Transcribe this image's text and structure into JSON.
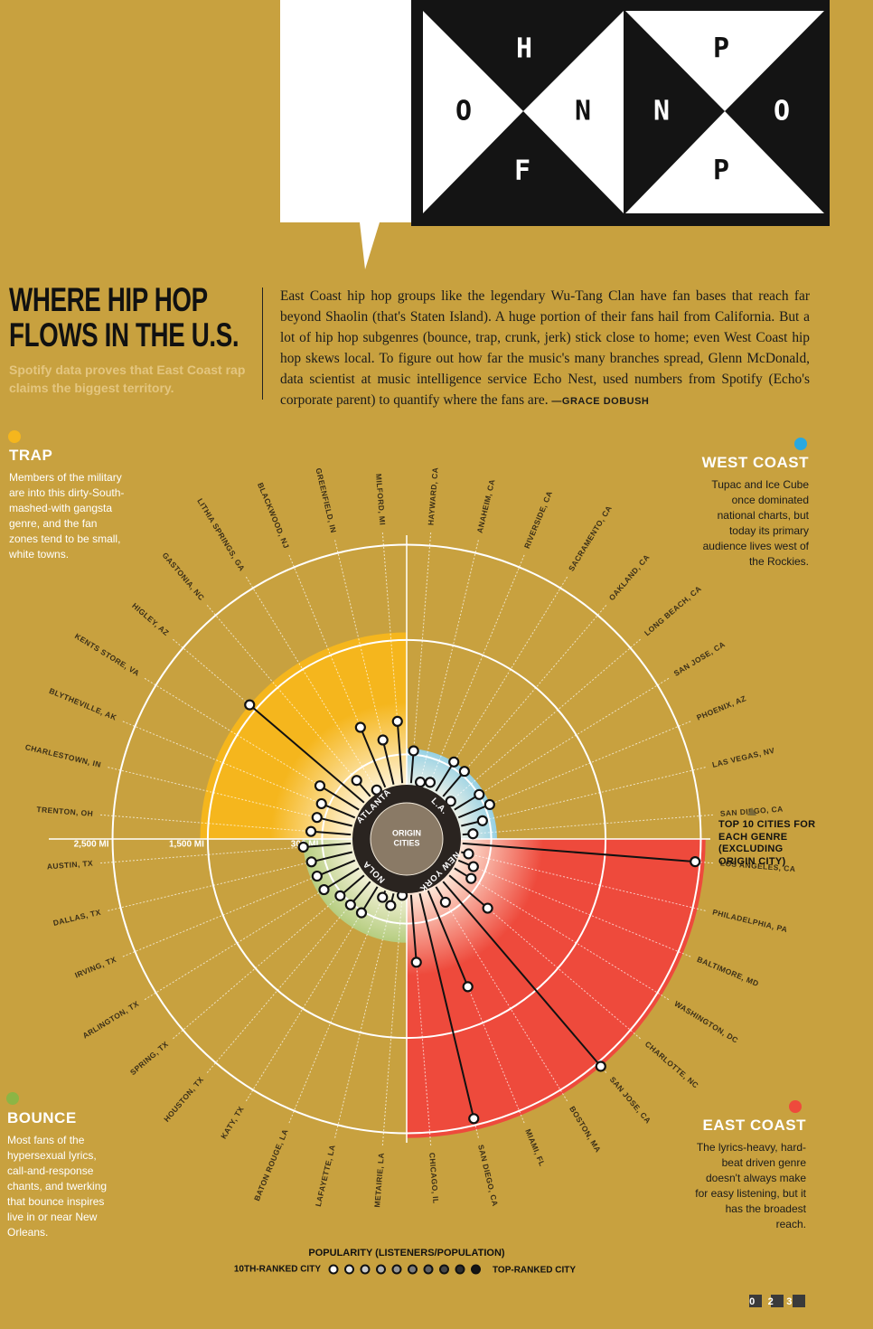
{
  "logo": {
    "letters": [
      "H",
      "O",
      "N",
      "F",
      "P",
      "N",
      "O",
      "P"
    ]
  },
  "header": {
    "title": "WHERE HIP HOP FLOWS IN THE U.S.",
    "subtitle": "Spotify data proves that East Coast rap claims the biggest territory."
  },
  "article": {
    "text": "East Coast hip hop groups like the legendary Wu-Tang Clan have fan bases that reach far beyond Shaolin (that's Staten Island). A huge portion of their fans hail from California. But a lot of hip hop subgenres (bounce, trap, crunk, jerk) stick close to home; even West Coast hip hop skews local. To figure out how far the music's many branches spread, Glenn McDonald, data scientist at music intelligence service Echo Nest, used numbers from Spotify (Echo's corporate parent) to quantify where the fans are.",
    "byline": "—GRACE DOBUSH"
  },
  "chart_data": {
    "type": "radial",
    "center_label": "ORIGIN CITIES",
    "note": "TOP 10 CITIES FOR EACH GENRE (EXCLUDING ORIGIN CITY)",
    "rlim": [
      0,
      2600
    ],
    "rticks": [
      {
        "value": 300,
        "label": "300 MI"
      },
      {
        "value": 1500,
        "label": "1,500 MI"
      },
      {
        "value": 2500,
        "label": "2,500 MI"
      }
    ],
    "legend": {
      "title": "POPULARITY (LISTENERS/POPULATION)",
      "low": "10TH-RANKED CITY",
      "high": "TOP-RANKED CITY"
    },
    "series": [
      {
        "name": "TRAP",
        "origin": "ATLANTA",
        "color": "#f5b61d",
        "description": "Members of the military are into this dirty-South-mashed-with gangsta genre, and the fan zones tend to be small, white towns.",
        "categories": [
          "TRENTON, OH",
          "CHARLESTOWN, IN",
          "BLYTHEVILLE, AK",
          "KENTS STORE, VA",
          "HIGLEY, AZ",
          "GASTONIA, NC",
          "LITHIA SPRINGS, GA",
          "BLACKWOOD, NJ",
          "GREENFIELD, IN",
          "MILFORD, MI"
        ],
        "values": [
          420,
          380,
          380,
          480,
          1580,
          220,
          15,
          680,
          480,
          650
        ]
      },
      {
        "name": "WEST COAST",
        "origin": "L.A.",
        "color": "#2aa8e0",
        "description": "Tupac and Ice Cube once dominated national charts, but today its primary audience lives west of the Rockies.",
        "categories": [
          "HAYWARD, CA",
          "ANAHEIM, CA",
          "RIVERSIDE, CA",
          "SACRAMENTO, CA",
          "OAKLAND, CA",
          "LONG BEACH, CA",
          "SAN JOSE, CA",
          "PHOENIX, AZ",
          "LAS VEGAS, NV",
          "SAN DIEGO, CA"
        ],
        "values": [
          340,
          25,
          55,
          360,
          345,
          20,
          305,
          355,
          230,
          110
        ]
      },
      {
        "name": "EAST COAST",
        "origin": "NEW YORK",
        "color": "#ee4a3c",
        "description": "The lyrics-heavy, hard-beat driven genre doesn't always make for easy listening, but it has the broadest reach.",
        "categories": [
          "LOS ANGELES, CA",
          "PHILADELPHIA, PA",
          "BALTIMORE, MD",
          "WASHINGTON, DC",
          "CHARLOTTE, NC",
          "SAN JOSE, CA",
          "BOSTON, MA",
          "MIAMI, FL",
          "SAN DIEGO, CA",
          "CHICAGO, IL"
        ],
        "values": [
          2450,
          80,
          170,
          205,
          530,
          2550,
          190,
          1090,
          2430,
          710
        ]
      },
      {
        "name": "BOUNCE",
        "origin": "NOLA",
        "color": "#8cb545",
        "description": "Most fans of the hypersexual lyrics, call-and-response chants, and twerking that bounce inspires live in or near New Orleans.",
        "categories": [
          "METAIRIE, LA",
          "LAFAYETTE, LA",
          "BATON ROUGE, LA",
          "KATY, TX",
          "HOUSTON, TX",
          "SPRING, TX",
          "ARLINGTON, TX",
          "IRVING, TX",
          "DALLAS, TX",
          "AUSTIN, TX"
        ],
        "values": [
          5,
          130,
          75,
          320,
          320,
          330,
          430,
          430,
          440,
          500
        ]
      }
    ]
  },
  "page_number": "023"
}
